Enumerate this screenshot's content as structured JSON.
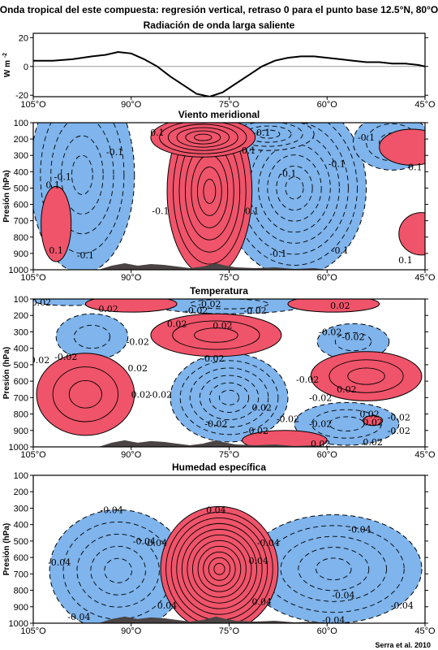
{
  "figure": {
    "title": "Onda tropical del este compuesta: regresión vertical, retraso 0 para el punto base 12.5°N, 80°O",
    "credit": "Serra et al. 2010"
  },
  "colors": {
    "positive": "#f0546a",
    "negative": "#7fb4ec",
    "topography": "#4a4444",
    "axis": "#000000"
  },
  "chart_data": [
    {
      "type": "line",
      "title": "Radiación de onda larga saliente",
      "ylabel": "W m-2",
      "ylabel_main": "W m",
      "ylabel_sup": "-2",
      "xlim": [
        105,
        45
      ],
      "ylim": [
        -21,
        23
      ],
      "x_ticks": [
        105,
        90,
        75,
        60,
        45
      ],
      "x_tick_labels": [
        "105°O",
        "90°O",
        "75°O",
        "60°O",
        "45°O"
      ],
      "y_ticks": [
        20,
        0,
        -20
      ],
      "y_tick_labels": [
        "20",
        "0",
        "-20"
      ],
      "zero_line": true,
      "x": [
        105,
        102,
        99,
        96,
        94,
        92,
        90,
        88,
        86,
        84,
        82,
        80,
        78,
        76,
        74,
        72,
        70,
        68,
        66,
        64,
        62,
        60,
        58,
        56,
        54,
        52,
        50,
        48,
        46,
        45
      ],
      "y": [
        4,
        4,
        5,
        7,
        8,
        10,
        9,
        5,
        0,
        -7,
        -13,
        -19,
        -21,
        -18,
        -12,
        -6,
        0,
        4,
        6,
        7,
        7,
        6,
        5,
        4,
        3,
        3,
        2,
        2,
        1,
        0
      ]
    },
    {
      "type": "heatmap",
      "title": "Viento meridional",
      "ylabel": "Presión (hPa)",
      "xlim": [
        105,
        45
      ],
      "ylim": [
        1000,
        100
      ],
      "x_ticks": [
        105,
        90,
        75,
        60,
        45
      ],
      "x_tick_labels": [
        "105°O",
        "90°O",
        "75°O",
        "60°O",
        "45°O"
      ],
      "y_ticks": [
        100,
        200,
        300,
        400,
        500,
        600,
        700,
        800,
        900,
        1000
      ],
      "y_tick_labels": [
        "100",
        "200",
        "300",
        "400",
        "500",
        "600",
        "700",
        "800",
        "900",
        "1000"
      ],
      "contour_interval": 0.1,
      "cells": [
        {
          "sign": "neg",
          "x": 97.5,
          "p": 420,
          "rx": 8,
          "rp": 600,
          "levels": 5,
          "label": "-0.1"
        },
        {
          "sign": "neg",
          "x": 65,
          "p": 500,
          "rx": 11,
          "rp": 540,
          "levels": 8,
          "label": "-0.1"
        },
        {
          "sign": "neg",
          "x": 69,
          "p": 170,
          "rx": 7,
          "rp": 100,
          "levels": 4,
          "label": "-0.1"
        },
        {
          "sign": "neg",
          "x": 50,
          "p": 220,
          "rx": 6,
          "rp": 170,
          "levels": 3,
          "label": "-0.1"
        },
        {
          "sign": "pos",
          "x": 78,
          "p": 520,
          "rx": 6.5,
          "rp": 520,
          "levels": 7,
          "label": "0.1"
        },
        {
          "sign": "pos",
          "x": 79,
          "p": 190,
          "rx": 8,
          "rp": 120,
          "levels": 6,
          "label": "0.1"
        },
        {
          "sign": "pos",
          "x": 101.5,
          "p": 720,
          "rx": 2.3,
          "rp": 230,
          "levels": 1,
          "label": "0.1"
        },
        {
          "sign": "pos",
          "x": 47,
          "p": 250,
          "rx": 5,
          "rp": 110,
          "levels": 1,
          "label": "0.1"
        },
        {
          "sign": "pos",
          "x": 45.5,
          "p": 780,
          "rx": 3.5,
          "rp": 130,
          "levels": 1,
          "label": "0.1"
        }
      ],
      "contour_labels": [
        {
          "x": 86,
          "p": 160,
          "text": "0.1"
        },
        {
          "x": 92.5,
          "p": 280,
          "text": "-0.1"
        },
        {
          "x": 100.5,
          "p": 430,
          "text": "-0.1"
        },
        {
          "x": 102,
          "p": 480,
          "text": "0.1"
        },
        {
          "x": 85.5,
          "p": 640,
          "text": "-0.1"
        },
        {
          "x": 101.5,
          "p": 880,
          "text": "0.1"
        },
        {
          "x": 97,
          "p": 910,
          "text": "-0.1"
        },
        {
          "x": 70,
          "p": 160,
          "text": "-0.1"
        },
        {
          "x": 72,
          "p": 270,
          "text": "0.1"
        },
        {
          "x": 66,
          "p": 410,
          "text": "-0.1"
        },
        {
          "x": 71.5,
          "p": 640,
          "text": "0.1"
        },
        {
          "x": 67.5,
          "p": 900,
          "text": "-0.1"
        },
        {
          "x": 58.5,
          "p": 350,
          "text": "-0.1"
        },
        {
          "x": 54,
          "p": 190,
          "text": "-0.1"
        },
        {
          "x": 46.5,
          "p": 370,
          "text": "0.1"
        },
        {
          "x": 58,
          "p": 880,
          "text": "-0.1"
        },
        {
          "x": 48,
          "p": 940,
          "text": "0.1"
        }
      ]
    },
    {
      "type": "heatmap",
      "title": "Temperatura",
      "ylabel": "Presión (hPa)",
      "xlim": [
        105,
        45
      ],
      "ylim": [
        1000,
        100
      ],
      "x_ticks": [
        105,
        90,
        75,
        60,
        45
      ],
      "x_tick_labels": [
        "105°O",
        "90°O",
        "75°O",
        "60°O",
        "45°O"
      ],
      "y_ticks": [
        100,
        200,
        300,
        400,
        500,
        600,
        700,
        800,
        900,
        1000
      ],
      "y_tick_labels": [
        "100",
        "200",
        "300",
        "400",
        "500",
        "600",
        "700",
        "800",
        "900",
        "1000"
      ],
      "contour_interval": 0.02,
      "cells": [
        {
          "sign": "neg",
          "x": 75,
          "p": 700,
          "rx": 9,
          "rp": 270,
          "levels": 6,
          "label": "-0.02"
        },
        {
          "sign": "neg",
          "x": 75,
          "p": 130,
          "rx": 12,
          "rp": 60,
          "levels": 2,
          "label": "-0.02"
        },
        {
          "sign": "neg",
          "x": 96,
          "p": 330,
          "rx": 5.5,
          "rp": 140,
          "levels": 2,
          "label": "-0.02"
        },
        {
          "sign": "neg",
          "x": 56,
          "p": 360,
          "rx": 5.5,
          "rp": 110,
          "levels": 2,
          "label": "-0.02"
        },
        {
          "sign": "neg",
          "x": 57,
          "p": 860,
          "rx": 8,
          "rp": 130,
          "levels": 3,
          "label": "-0.02"
        },
        {
          "sign": "neg",
          "x": 99.5,
          "p": 110,
          "rx": 5.5,
          "rp": 30,
          "levels": 1,
          "label": "-0.02"
        },
        {
          "sign": "pos",
          "x": 97,
          "p": 680,
          "rx": 7.5,
          "rp": 250,
          "levels": 3,
          "label": "0.02"
        },
        {
          "sign": "pos",
          "x": 77,
          "p": 320,
          "rx": 10,
          "rp": 130,
          "levels": 3,
          "label": "0.02"
        },
        {
          "sign": "pos",
          "x": 54,
          "p": 570,
          "rx": 8.5,
          "rp": 150,
          "levels": 3,
          "label": "0.02"
        },
        {
          "sign": "pos",
          "x": 90,
          "p": 130,
          "rx": 7,
          "rp": 50,
          "levels": 1,
          "label": "0.02"
        },
        {
          "sign": "pos",
          "x": 59,
          "p": 130,
          "rx": 7,
          "rp": 50,
          "levels": 1,
          "label": "0.02"
        },
        {
          "sign": "pos",
          "x": 66.5,
          "p": 960,
          "rx": 6.5,
          "rp": 60,
          "levels": 1,
          "label": "0.02"
        },
        {
          "sign": "pos",
          "x": 53,
          "p": 840,
          "rx": 1.5,
          "rp": 30,
          "levels": 1,
          "label": "0.02"
        }
      ],
      "contour_labels": [
        {
          "x": 104,
          "p": 120,
          "text": "-0.02"
        },
        {
          "x": 93.5,
          "p": 160,
          "text": "0.02"
        },
        {
          "x": 78,
          "p": 130,
          "text": "-0.02"
        },
        {
          "x": 80,
          "p": 170,
          "text": "-0.02"
        },
        {
          "x": 71,
          "p": 170,
          "text": "-0.02"
        },
        {
          "x": 58,
          "p": 140,
          "text": "0.02"
        },
        {
          "x": 83,
          "p": 250,
          "text": "0.02"
        },
        {
          "x": 89,
          "p": 360,
          "text": "-0.02"
        },
        {
          "x": 100,
          "p": 450,
          "text": "-0.02"
        },
        {
          "x": 104,
          "p": 470,
          "text": "0.02"
        },
        {
          "x": 77.5,
          "p": 460,
          "text": "-0.02"
        },
        {
          "x": 76,
          "p": 260,
          "text": "0.02"
        },
        {
          "x": 59.5,
          "p": 300,
          "text": "-0.02"
        },
        {
          "x": 56,
          "p": 330,
          "text": "-0.02"
        },
        {
          "x": 89,
          "p": 520,
          "text": "0.02"
        },
        {
          "x": 88.5,
          "p": 680,
          "text": "0.02"
        },
        {
          "x": 85.5,
          "p": 680,
          "text": "-0.02"
        },
        {
          "x": 63,
          "p": 590,
          "text": "-0.02"
        },
        {
          "x": 61,
          "p": 700,
          "text": "-0.02"
        },
        {
          "x": 70,
          "p": 760,
          "text": "0.02"
        },
        {
          "x": 77,
          "p": 860,
          "text": "-0.02"
        },
        {
          "x": 66,
          "p": 830,
          "text": "-0.02"
        },
        {
          "x": 61,
          "p": 860,
          "text": "-0.02"
        },
        {
          "x": 70.5,
          "p": 900,
          "text": "0.02"
        },
        {
          "x": 53.5,
          "p": 800,
          "text": "0.02"
        },
        {
          "x": 53,
          "p": 850,
          "text": "0.02"
        },
        {
          "x": 49,
          "p": 820,
          "text": "-0.02"
        },
        {
          "x": 49,
          "p": 900,
          "text": "-0.02"
        },
        {
          "x": 57,
          "p": 650,
          "text": "0.02"
        },
        {
          "x": 61,
          "p": 980,
          "text": "0.02"
        },
        {
          "x": 53,
          "p": 970,
          "text": "0.02"
        }
      ]
    },
    {
      "type": "heatmap",
      "title": "Humedad específica",
      "ylabel": "Presión (hPa)",
      "xlim": [
        105,
        45
      ],
      "ylim": [
        1000,
        100
      ],
      "x_ticks": [
        105,
        90,
        75,
        60,
        45
      ],
      "x_tick_labels": [
        "105°O",
        "90°O",
        "75°O",
        "60°O",
        "45°O"
      ],
      "y_ticks": [
        100,
        200,
        300,
        400,
        500,
        600,
        700,
        800,
        900,
        1000
      ],
      "y_tick_labels": [
        "100",
        "200",
        "300",
        "400",
        "500",
        "600",
        "700",
        "800",
        "900",
        "1000"
      ],
      "contour_interval": 0.04,
      "cells": [
        {
          "sign": "neg",
          "x": 92,
          "p": 680,
          "rx": 10.5,
          "rp": 370,
          "levels": 5,
          "label": "-0.04"
        },
        {
          "sign": "neg",
          "x": 59,
          "p": 670,
          "rx": 13.5,
          "rp": 330,
          "levels": 5,
          "label": "-0.04"
        },
        {
          "sign": "pos",
          "x": 76.5,
          "p": 670,
          "rx": 9,
          "rp": 380,
          "levels": 11,
          "label": "0.04"
        }
      ],
      "contour_labels": [
        {
          "x": 93,
          "p": 310,
          "text": "-0.04"
        },
        {
          "x": 88,
          "p": 500,
          "text": "-0.04"
        },
        {
          "x": 86,
          "p": 510,
          "text": "0.04"
        },
        {
          "x": 101,
          "p": 630,
          "text": "-0.04"
        },
        {
          "x": 98,
          "p": 960,
          "text": "-0.04"
        },
        {
          "x": 84.5,
          "p": 890,
          "text": "0.04"
        },
        {
          "x": 77,
          "p": 310,
          "text": "0.04"
        },
        {
          "x": 69,
          "p": 510,
          "text": "-0.04"
        },
        {
          "x": 70.5,
          "p": 620,
          "text": "0.04"
        },
        {
          "x": 70,
          "p": 870,
          "text": "0.04"
        },
        {
          "x": 55,
          "p": 430,
          "text": "-0.04"
        },
        {
          "x": 57.5,
          "p": 830,
          "text": "-0.04"
        },
        {
          "x": 48.5,
          "p": 890,
          "text": "-0.04"
        },
        {
          "x": 59,
          "p": 980,
          "text": "-0.04"
        }
      ]
    }
  ]
}
